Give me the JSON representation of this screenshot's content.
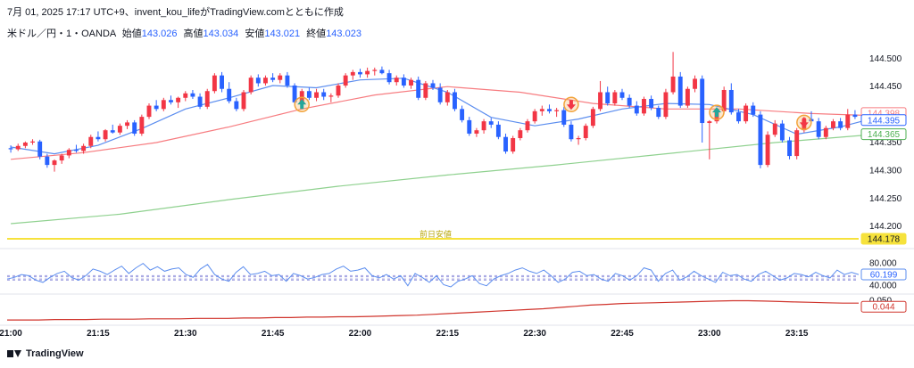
{
  "header": {
    "title": "7月 01, 2025 17:17 UTC+9、invent_kou_lifeがTradingView.comとともに作成",
    "symbol": "米ドル／円・1・OANDA",
    "open_label": "始値",
    "open_value": "143.026",
    "high_label": "高値",
    "high_value": "143.034",
    "low_label": "安値",
    "low_value": "143.021",
    "close_label": "終値",
    "close_value": "143.023"
  },
  "footer": {
    "brand": "TradingView"
  },
  "colors": {
    "up": "#f23645",
    "down": "#2962ff",
    "fast_ma": "#5b8def",
    "slow_ma": "#f77c80",
    "long_ma": "#8fd18f",
    "prev_low": "#f6e23c",
    "rsi": "#5b8def",
    "sub": "#d0342c",
    "signal_up": "#26a69a",
    "signal_ring": "#f2a33a"
  },
  "chart_data": [
    {
      "type": "candlestick",
      "title": "",
      "y_ticks": [
        "144.500",
        "144.450",
        "144.400",
        "144.350",
        "144.300",
        "144.250",
        "144.200"
      ],
      "ylim": [
        144.17,
        144.53
      ],
      "x_ticks": [
        "21:00",
        "21:15",
        "21:30",
        "21:45",
        "22:00",
        "22:15",
        "22:30",
        "22:45",
        "23:00",
        "23:15"
      ],
      "price_labels": [
        {
          "name": "slow-ma-price",
          "value": "144.398",
          "color": "#f77c80"
        },
        {
          "name": "fast-ma-price",
          "value": "144.395",
          "color": "#2962ff"
        },
        {
          "name": "long-ma-price",
          "value": "144.365",
          "color": "#4caf50"
        },
        {
          "name": "prev-low-price",
          "value": "144.178",
          "color": "#f6e23c"
        }
      ],
      "prev_low": {
        "label": "前日安値",
        "value": 144.178
      },
      "candles": [
        [
          144.34,
          144.345,
          144.332,
          144.338
        ],
        [
          144.338,
          144.348,
          144.335,
          144.344
        ],
        [
          144.344,
          144.352,
          144.34,
          144.35
        ],
        [
          144.35,
          144.356,
          144.346,
          144.352
        ],
        [
          144.352,
          144.355,
          144.32,
          144.325
        ],
        [
          144.325,
          144.33,
          144.305,
          144.31
        ],
        [
          144.31,
          144.32,
          144.298,
          144.318
        ],
        [
          144.318,
          144.33,
          144.312,
          144.327
        ],
        [
          144.327,
          144.34,
          144.322,
          144.337
        ],
        [
          144.337,
          144.346,
          144.332,
          144.335
        ],
        [
          144.335,
          144.348,
          144.33,
          144.344
        ],
        [
          144.344,
          144.364,
          144.34,
          144.36
        ],
        [
          144.36,
          144.37,
          144.352,
          144.356
        ],
        [
          144.356,
          144.374,
          144.352,
          144.372
        ],
        [
          144.372,
          144.382,
          144.366,
          144.368
        ],
        [
          144.368,
          144.384,
          144.364,
          144.38
        ],
        [
          144.38,
          144.39,
          144.374,
          144.386
        ],
        [
          144.386,
          144.39,
          144.362,
          144.366
        ],
        [
          144.366,
          144.4,
          144.362,
          144.396
        ],
        [
          144.396,
          144.42,
          144.392,
          144.416
        ],
        [
          144.416,
          144.426,
          144.406,
          144.41
        ],
        [
          144.41,
          144.43,
          144.406,
          144.426
        ],
        [
          144.426,
          144.434,
          144.418,
          144.422
        ],
        [
          144.422,
          144.432,
          144.412,
          144.43
        ],
        [
          144.43,
          144.442,
          144.424,
          144.438
        ],
        [
          144.438,
          144.444,
          144.428,
          144.432
        ],
        [
          144.432,
          144.438,
          144.41,
          144.414
        ],
        [
          144.414,
          144.446,
          144.41,
          144.442
        ],
        [
          144.442,
          144.474,
          144.438,
          144.47
        ],
        [
          144.47,
          144.476,
          144.44,
          144.446
        ],
        [
          144.446,
          144.458,
          144.42,
          144.424
        ],
        [
          144.424,
          144.43,
          144.406,
          144.41
        ],
        [
          144.41,
          144.444,
          144.406,
          144.44
        ],
        [
          144.44,
          144.47,
          144.436,
          144.466
        ],
        [
          144.466,
          144.472,
          144.45,
          144.456
        ],
        [
          144.456,
          144.47,
          144.452,
          144.466
        ],
        [
          144.466,
          144.474,
          144.458,
          144.462
        ],
        [
          144.462,
          144.474,
          144.456,
          144.47
        ],
        [
          144.47,
          144.476,
          144.448,
          144.452
        ],
        [
          144.452,
          144.456,
          144.418,
          144.422
        ],
        [
          144.422,
          144.446,
          144.418,
          144.442
        ],
        [
          144.442,
          144.448,
          144.426,
          144.43
        ],
        [
          144.43,
          144.446,
          144.424,
          144.44
        ],
        [
          144.44,
          144.446,
          144.426,
          144.432
        ],
        [
          144.432,
          144.438,
          144.422,
          144.434
        ],
        [
          144.434,
          144.456,
          144.43,
          144.452
        ],
        [
          144.452,
          144.474,
          144.448,
          144.47
        ],
        [
          144.47,
          144.48,
          144.462,
          144.476
        ],
        [
          144.476,
          144.482,
          144.466,
          144.472
        ],
        [
          144.472,
          144.484,
          144.466,
          144.478
        ],
        [
          144.478,
          144.484,
          144.47,
          144.48
        ],
        [
          144.48,
          144.486,
          144.472,
          144.474
        ],
        [
          144.474,
          144.48,
          144.454,
          144.458
        ],
        [
          144.458,
          144.47,
          144.452,
          144.466
        ],
        [
          144.466,
          144.472,
          144.448,
          144.452
        ],
        [
          144.452,
          144.466,
          144.446,
          144.462
        ],
        [
          144.462,
          144.468,
          144.426,
          144.43
        ],
        [
          144.43,
          144.46,
          144.426,
          144.456
        ],
        [
          144.456,
          144.462,
          144.444,
          144.448
        ],
        [
          144.448,
          144.456,
          144.418,
          144.422
        ],
        [
          144.422,
          144.444,
          144.416,
          144.44
        ],
        [
          144.44,
          144.446,
          144.406,
          144.41
        ],
        [
          144.41,
          144.416,
          144.386,
          144.39
        ],
        [
          144.39,
          144.396,
          144.362,
          144.366
        ],
        [
          144.366,
          144.376,
          144.36,
          144.372
        ],
        [
          144.372,
          144.392,
          144.366,
          144.388
        ],
        [
          144.388,
          144.394,
          144.376,
          144.382
        ],
        [
          144.382,
          144.388,
          144.356,
          144.36
        ],
        [
          144.36,
          144.366,
          144.33,
          144.334
        ],
        [
          144.334,
          144.362,
          144.33,
          144.358
        ],
        [
          144.358,
          144.376,
          144.354,
          144.372
        ],
        [
          144.372,
          144.392,
          144.368,
          144.388
        ],
        [
          144.388,
          144.41,
          144.384,
          144.406
        ],
        [
          144.406,
          144.416,
          144.398,
          144.41
        ],
        [
          144.41,
          144.418,
          144.402,
          144.406
        ],
        [
          144.406,
          144.412,
          144.396,
          144.408
        ],
        [
          144.408,
          144.414,
          144.378,
          144.382
        ],
        [
          144.382,
          144.388,
          144.352,
          144.356
        ],
        [
          144.356,
          144.362,
          144.346,
          144.358
        ],
        [
          144.358,
          144.384,
          144.354,
          144.38
        ],
        [
          144.38,
          144.414,
          144.376,
          144.41
        ],
        [
          144.41,
          144.46,
          144.406,
          144.44
        ],
        [
          144.44,
          144.45,
          144.416,
          144.42
        ],
        [
          144.42,
          144.444,
          144.416,
          144.44
        ],
        [
          144.44,
          144.446,
          144.426,
          144.43
        ],
        [
          144.43,
          144.436,
          144.412,
          144.416
        ],
        [
          144.416,
          144.424,
          144.398,
          144.402
        ],
        [
          144.402,
          144.432,
          144.398,
          144.428
        ],
        [
          144.428,
          144.434,
          144.408,
          144.412
        ],
        [
          144.412,
          144.416,
          144.392,
          144.396
        ],
        [
          144.396,
          144.446,
          144.392,
          144.44
        ],
        [
          144.44,
          144.512,
          144.436,
          144.468
        ],
        [
          144.468,
          144.476,
          144.412,
          144.416
        ],
        [
          144.416,
          144.45,
          144.412,
          144.446
        ],
        [
          144.446,
          144.47,
          144.44,
          144.464
        ],
        [
          144.464,
          144.47,
          144.35,
          144.385
        ],
        [
          144.385,
          144.39,
          144.32,
          144.388
        ],
        [
          144.388,
          144.41,
          144.384,
          144.406
        ],
        [
          144.406,
          144.45,
          144.402,
          144.444
        ],
        [
          144.444,
          144.456,
          144.4,
          144.404
        ],
        [
          144.404,
          144.41,
          144.384,
          144.388
        ],
        [
          144.388,
          144.42,
          144.384,
          144.416
        ],
        [
          144.416,
          144.422,
          144.396,
          144.4
        ],
        [
          144.4,
          144.406,
          144.304,
          144.31
        ],
        [
          144.31,
          144.37,
          144.306,
          144.364
        ],
        [
          144.364,
          144.39,
          144.36,
          144.384
        ],
        [
          144.384,
          144.39,
          144.35,
          144.354
        ],
        [
          144.354,
          144.36,
          144.32,
          144.326
        ],
        [
          144.326,
          144.376,
          144.32,
          144.372
        ],
        [
          144.372,
          144.396,
          144.368,
          144.392
        ],
        [
          144.392,
          144.406,
          144.384,
          144.388
        ],
        [
          144.388,
          144.394,
          144.356,
          144.36
        ],
        [
          144.36,
          144.38,
          144.356,
          144.376
        ],
        [
          144.376,
          144.392,
          144.372,
          144.388
        ],
        [
          144.388,
          144.394,
          144.372,
          144.376
        ],
        [
          144.376,
          144.41,
          144.372,
          144.4
        ],
        [
          144.4,
          144.408,
          144.392,
          144.396
        ]
      ],
      "fast_ma": [
        [
          0,
          144.342
        ],
        [
          6,
          144.33
        ],
        [
          12,
          144.345
        ],
        [
          18,
          144.375
        ],
        [
          24,
          144.41
        ],
        [
          30,
          144.43
        ],
        [
          36,
          144.452
        ],
        [
          42,
          144.448
        ],
        [
          48,
          144.462
        ],
        [
          54,
          144.465
        ],
        [
          60,
          144.44
        ],
        [
          66,
          144.395
        ],
        [
          72,
          144.38
        ],
        [
          78,
          144.392
        ],
        [
          84,
          144.41
        ],
        [
          90,
          144.42
        ],
        [
          96,
          144.418
        ],
        [
          102,
          144.4
        ],
        [
          108,
          144.365
        ],
        [
          114,
          144.378
        ],
        [
          119,
          144.395
        ]
      ],
      "slow_ma": [
        [
          0,
          144.32
        ],
        [
          10,
          144.332
        ],
        [
          20,
          144.35
        ],
        [
          30,
          144.378
        ],
        [
          40,
          144.41
        ],
        [
          50,
          144.435
        ],
        [
          60,
          144.45
        ],
        [
          70,
          144.44
        ],
        [
          80,
          144.42
        ],
        [
          90,
          144.41
        ],
        [
          100,
          144.41
        ],
        [
          110,
          144.402
        ],
        [
          119,
          144.398
        ]
      ],
      "long_ma": [
        [
          0,
          144.205
        ],
        [
          15,
          144.222
        ],
        [
          30,
          144.248
        ],
        [
          45,
          144.272
        ],
        [
          60,
          144.292
        ],
        [
          75,
          144.31
        ],
        [
          90,
          144.33
        ],
        [
          105,
          144.35
        ],
        [
          119,
          144.365
        ]
      ],
      "signals": [
        {
          "index": 40,
          "direction": "up",
          "value": 144.418
        },
        {
          "index": 77,
          "direction": "down",
          "value": 144.418
        },
        {
          "index": 97,
          "direction": "up",
          "value": 144.404
        },
        {
          "index": 109,
          "direction": "down",
          "value": 144.386
        }
      ]
    },
    {
      "type": "line",
      "title": "",
      "y_ticks": [
        "80.000",
        "40.000"
      ],
      "ylim": [
        30,
        100
      ],
      "current_value": "60.199",
      "bands": [
        58,
        56,
        52,
        50
      ],
      "values": [
        52,
        55,
        60,
        58,
        50,
        46,
        55,
        62,
        66,
        55,
        50,
        58,
        70,
        66,
        60,
        68,
        75,
        62,
        72,
        80,
        68,
        74,
        66,
        70,
        72,
        60,
        55,
        70,
        78,
        60,
        52,
        48,
        64,
        74,
        60,
        62,
        66,
        58,
        60,
        48,
        62,
        58,
        52,
        55,
        60,
        62,
        70,
        75,
        66,
        68,
        72,
        58,
        54,
        60,
        52,
        58,
        40,
        62,
        55,
        46,
        58,
        42,
        38,
        48,
        52,
        58,
        44,
        40,
        52,
        58,
        62,
        68,
        72,
        66,
        62,
        68,
        58,
        46,
        52,
        64,
        66,
        58,
        60,
        52,
        48,
        62,
        58,
        50,
        58,
        72,
        68,
        48,
        62,
        68,
        50,
        56,
        66,
        58,
        52,
        46,
        64,
        58,
        60,
        52,
        48,
        60,
        66,
        58,
        50,
        54,
        62,
        60,
        56,
        64,
        58,
        54,
        68,
        60,
        64,
        60
      ]
    },
    {
      "type": "line",
      "title": "",
      "y_ticks": [
        "0.050"
      ],
      "current_value": "0.044",
      "ylim": [
        0.0,
        0.06
      ],
      "values": [
        0.002,
        0.002,
        0.002,
        0.003,
        0.003,
        0.003,
        0.004,
        0.004,
        0.004,
        0.005,
        0.005,
        0.005,
        0.006,
        0.006,
        0.006,
        0.007,
        0.007,
        0.008,
        0.008,
        0.009,
        0.009,
        0.01,
        0.01,
        0.011,
        0.012,
        0.013,
        0.014,
        0.016,
        0.018,
        0.02,
        0.022,
        0.024,
        0.026,
        0.028,
        0.03,
        0.033,
        0.036,
        0.039,
        0.041,
        0.043,
        0.044,
        0.045,
        0.046,
        0.047,
        0.048,
        0.049,
        0.05,
        0.05,
        0.049,
        0.048,
        0.047,
        0.046,
        0.045,
        0.044,
        0.044
      ]
    }
  ]
}
